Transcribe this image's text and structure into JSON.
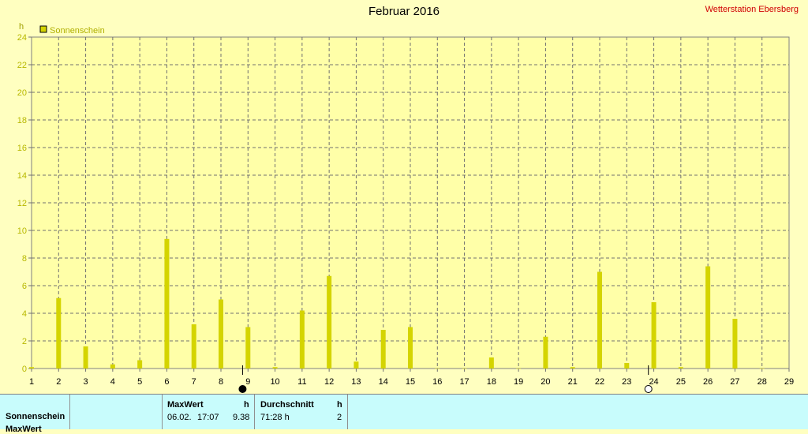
{
  "title": "Februar 2016",
  "station": "Wetterstation Ebersberg",
  "chart_data": {
    "type": "bar",
    "title": "Februar 2016",
    "ylabel": "h",
    "ylim": [
      0,
      24
    ],
    "yticks": [
      0,
      2,
      4,
      6,
      8,
      10,
      12,
      14,
      16,
      18,
      20,
      22,
      24
    ],
    "xticks": [
      1,
      2,
      3,
      4,
      5,
      6,
      7,
      8,
      9,
      10,
      11,
      12,
      13,
      14,
      15,
      16,
      17,
      18,
      19,
      20,
      21,
      22,
      23,
      24,
      25,
      26,
      27,
      28,
      29
    ],
    "grid": true,
    "legend_position": "top-left",
    "series": [
      {
        "name": "Sonnenschein",
        "color": "#d4d400",
        "days": [
          1,
          2,
          3,
          4,
          5,
          6,
          7,
          8,
          9,
          10,
          11,
          12,
          13,
          14,
          15,
          16,
          17,
          18,
          19,
          20,
          21,
          22,
          23,
          24,
          25,
          26,
          27,
          28
        ],
        "values": [
          0.1,
          5.1,
          1.6,
          0.3,
          0.6,
          9.38,
          3.2,
          5.0,
          3.0,
          0.1,
          4.2,
          6.7,
          0.5,
          2.8,
          3.0,
          0.0,
          0.0,
          0.8,
          0.0,
          2.3,
          0.1,
          7.0,
          0.4,
          4.8,
          0.1,
          7.4,
          3.6,
          0.0
        ]
      }
    ],
    "markers": [
      {
        "day": 8.8,
        "symbol": "new-moon"
      },
      {
        "day": 23.8,
        "symbol": "full-moon"
      }
    ]
  },
  "table": {
    "row_label": "Sonnenschein",
    "row_label_2": "MaxWert",
    "max_header": "MaxWert",
    "max_unit": "h",
    "max_date": "06.02.",
    "max_time": "17:07",
    "max_value": "9.38",
    "avg_header": "Durchschnitt",
    "avg_unit": "h",
    "avg_value": "71:28 h",
    "avg_value2": "2"
  }
}
